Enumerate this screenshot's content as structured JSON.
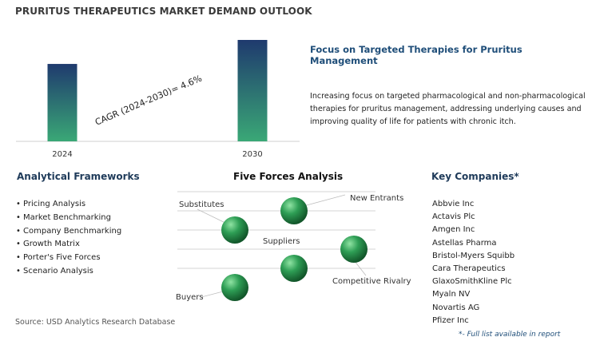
{
  "title": "PRURITUS THERAPEUTICS MARKET DEMAND OUTLOOK",
  "chart_data": {
    "type": "bar",
    "categories": [
      "2024",
      "2030"
    ],
    "values": [
      1.0,
      1.31
    ],
    "annotation": "CAGR (2024-2030)=  4.6%",
    "colors": {
      "bar_top": "#1f3a6e",
      "bar_bottom": "#3aa876"
    }
  },
  "focus": {
    "title": "Focus on Targeted Therapies for Pruritus Management",
    "description": "Increasing focus on targeted pharmacological and non-pharmacological therapies for pruritus management, addressing underlying causes and improving quality of life for patients with chronic itch."
  },
  "frameworks": {
    "heading": "Analytical Frameworks",
    "items": [
      "Pricing Analysis",
      "Market Benchmarking",
      "Company Benchmarking",
      "Growth Matrix",
      "Porter's Five Forces",
      "Scenario Analysis"
    ]
  },
  "five_forces": {
    "heading": "Five Forces Analysis",
    "labels": {
      "substitutes": "Substitutes",
      "new_entrants": "New Entrants",
      "suppliers": "Suppliers",
      "competitive_rivalry": "Competitive Rivalry",
      "buyers": "Buyers"
    },
    "colors": {
      "sphere": "#2e9e55",
      "line": "#d4d4d4"
    }
  },
  "companies": {
    "heading": "Key Companies*",
    "items": [
      "Abbvie Inc",
      "Actavis Plc",
      "Amgen Inc",
      "Astellas Pharma",
      "Bristol-Myers Squibb",
      "Cara Therapeutics",
      "GlaxoSmithKline Plc",
      "Myaln NV",
      "Novartis AG",
      "Pfizer Inc"
    ]
  },
  "source": "Source: USD Analytics Research Database",
  "footnote": "*- Full list available in report"
}
